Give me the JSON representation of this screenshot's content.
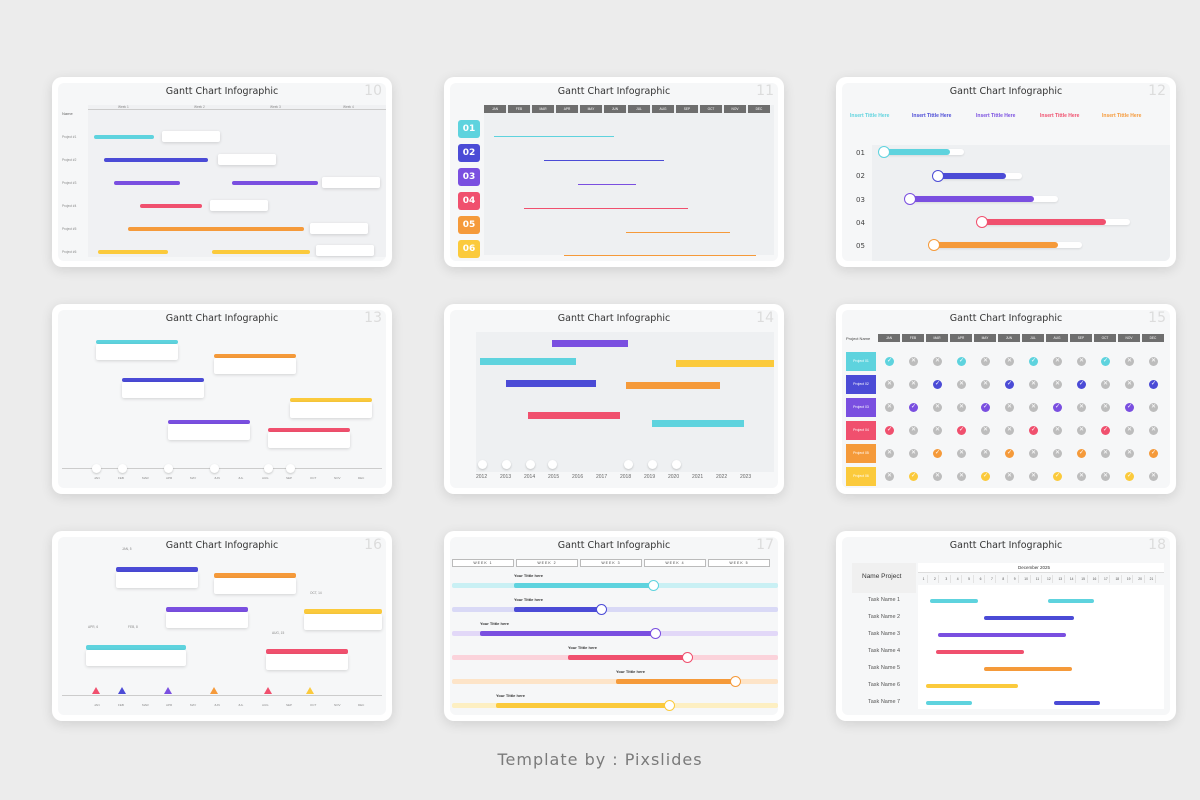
{
  "footer": "Template by : Pixslides",
  "colors": {
    "cyan": "#5ed3de",
    "indigo": "#4b4bd6",
    "purple": "#7a4fe0",
    "pink": "#f0506e",
    "orange": "#f59a3a",
    "yellow": "#fbca3c",
    "grey": "#6e6e6e"
  },
  "slides": [
    {
      "title": "Gantt Chart Infographic",
      "number": "10",
      "name_label": "Name",
      "weeks": [
        "Week 1",
        "Week 2",
        "Week 3",
        "Week 4"
      ],
      "projects": [
        "Project #1",
        "Project #2",
        "Project #3",
        "Project #4",
        "Project #5",
        "Project #6"
      ]
    },
    {
      "title": "Gantt Chart Infographic",
      "number": "11",
      "months": [
        "JAN",
        "FEB",
        "MAR",
        "APR",
        "MAY",
        "JUN",
        "JUL",
        "AUG",
        "SEP",
        "OCT",
        "NOV",
        "DEC"
      ],
      "steps": [
        "01",
        "02",
        "03",
        "04",
        "05",
        "06"
      ]
    },
    {
      "title": "Gantt Chart Infographic",
      "number": "12",
      "headings": [
        "Insert Tittle Here",
        "Insert Tittle Here",
        "Insert Tittle Here",
        "Insert Tittle Here",
        "Insert Tittle Here"
      ],
      "rows": [
        "01",
        "02",
        "03",
        "04",
        "05"
      ]
    },
    {
      "title": "Gantt Chart Infographic",
      "number": "13",
      "months": [
        "JAN",
        "FEB",
        "MAR",
        "APR",
        "MAY",
        "JUN",
        "JUL",
        "AUG",
        "SEP",
        "OCT",
        "NOV",
        "DEC"
      ]
    },
    {
      "title": "Gantt Chart Infographic",
      "number": "14",
      "years": [
        "2012",
        "2013",
        "2014",
        "2015",
        "2016",
        "2017",
        "2018",
        "2019",
        "2020",
        "2021",
        "2022",
        "2023"
      ]
    },
    {
      "title": "Gantt Chart Infographic",
      "number": "15",
      "project_name_label": "Project Name",
      "months": [
        "JAN",
        "FEB",
        "MAR",
        "APR",
        "MAY",
        "JUN",
        "JUL",
        "AUG",
        "SEP",
        "OCT",
        "NOV",
        "DEC"
      ],
      "projects": [
        "Project 01",
        "Project 02",
        "Project 03",
        "Project 04",
        "Project 05",
        "Project 06"
      ]
    },
    {
      "title": "Gantt Chart Infographic",
      "number": "16",
      "months": [
        "JAN",
        "FEB",
        "MAR",
        "APR",
        "MAY",
        "JUN",
        "JUL",
        "AUG",
        "SEP",
        "OCT",
        "NOV",
        "DEC"
      ],
      "date_labels": [
        "JAN, 5",
        "APR, 6",
        "FEB, 8",
        "OCT, 14",
        "AUG, 15"
      ]
    },
    {
      "title": "Gantt Chart Infographic",
      "number": "17",
      "weeks": [
        "WEEK 1",
        "WEEK 2",
        "WEEK 3",
        "WEEK 4",
        "WEEK 5"
      ],
      "row_title": "Your Tittle here"
    },
    {
      "title": "Gantt Chart Infographic",
      "number": "18",
      "name_project_label": "Name Project",
      "month_label": "December 2025",
      "days": [
        "1",
        "2",
        "3",
        "4",
        "5",
        "6",
        "7",
        "8",
        "9",
        "10",
        "11",
        "12",
        "13",
        "14",
        "15",
        "16",
        "17",
        "18",
        "19",
        "20",
        "21"
      ],
      "tasks": [
        "Task Name 1",
        "Task Name 2",
        "Task Name 3",
        "Task Name 4",
        "Task Name 5",
        "Task Name 6",
        "Task Name 7"
      ]
    }
  ]
}
